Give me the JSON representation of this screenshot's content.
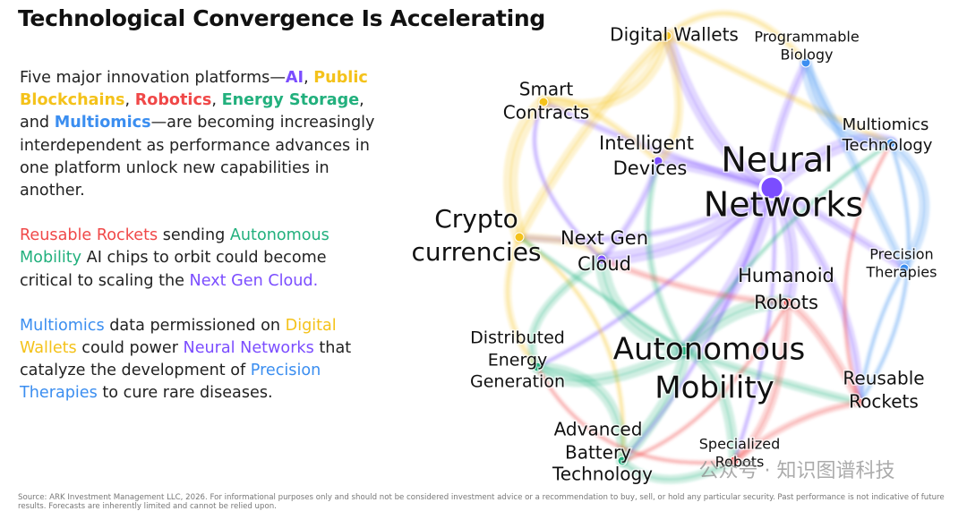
{
  "title": "Technological Convergence Is Accelerating",
  "paragraphs": [
    {
      "segments": [
        {
          "text": "Five major innovation platforms—"
        },
        {
          "text": "AI",
          "color": "#7b4dff",
          "bold": true
        },
        {
          "text": ", "
        },
        {
          "text": "Public Blockchains",
          "color": "#f4c21a",
          "bold": true
        },
        {
          "text": ", "
        },
        {
          "text": "Robotics",
          "color": "#f04848",
          "bold": true
        },
        {
          "text": ", "
        },
        {
          "text": "Energy Storage",
          "color": "#22b07d",
          "bold": true
        },
        {
          "text": ", and "
        },
        {
          "text": "Multiomics",
          "color": "#3b8ef0",
          "bold": true
        },
        {
          "text": "—are becoming increasingly interdependent as performance advances in one platform unlock new capabilities in another."
        }
      ]
    },
    {
      "segments": [
        {
          "text": "Reusable Rockets",
          "color": "#f04848"
        },
        {
          "text": " sending "
        },
        {
          "text": "Autonomous Mobility",
          "color": "#22b07d"
        },
        {
          "text": " AI chips to orbit could become critical to scaling the "
        },
        {
          "text": "Next Gen Cloud.",
          "color": "#7b4dff"
        }
      ]
    },
    {
      "segments": [
        {
          "text": "Multiomics",
          "color": "#3b8ef0"
        },
        {
          "text": " data permissioned on "
        },
        {
          "text": "Digital Wallets",
          "color": "#f4c21a"
        },
        {
          "text": " could power "
        },
        {
          "text": "Neural Networks",
          "color": "#7b4dff"
        },
        {
          "text": " that catalyze the development of "
        },
        {
          "text": "Precision Therapies",
          "color": "#3b8ef0"
        },
        {
          "text": " to cure rare diseases."
        }
      ]
    }
  ],
  "nodes": [
    {
      "lines": [
        "Digital Wallets"
      ],
      "color": "#f4c21a"
    },
    {
      "lines": [
        "Programmable",
        "Biology"
      ],
      "color": "#3b8ef0"
    },
    {
      "lines": [
        "Smart",
        "Contracts"
      ],
      "color": "#f4c21a"
    },
    {
      "lines": [
        "Multiomics",
        "Technology"
      ],
      "color": "#3b8ef0"
    },
    {
      "lines": [
        "Intelligent",
        "Devices"
      ],
      "color": "#7b4dff"
    },
    {
      "lines": [
        "Neural",
        "Networks"
      ],
      "color": "#7b4dff"
    },
    {
      "lines": [
        "Crypto",
        "currencies"
      ],
      "color": "#f4c21a"
    },
    {
      "lines": [
        "Next Gen",
        "Cloud"
      ],
      "color": "#7b4dff"
    },
    {
      "lines": [
        "Precision",
        "Therapies"
      ],
      "color": "#3b8ef0"
    },
    {
      "lines": [
        "Humanoid",
        "Robots"
      ],
      "color": "#f04848"
    },
    {
      "lines": [
        "Distributed",
        "Energy",
        "Generation"
      ],
      "color": "#22b07d"
    },
    {
      "lines": [
        "Autonomous",
        "Mobility"
      ],
      "color": "#22b07d"
    },
    {
      "lines": [
        "Reusable",
        "Rockets"
      ],
      "color": "#f04848"
    },
    {
      "lines": [
        "Advanced",
        "Battery",
        "Technology"
      ],
      "color": "#22b07d"
    },
    {
      "lines": [
        "Specialized",
        "Robots"
      ],
      "color": "#f04848"
    }
  ],
  "watermark": "公众号 · 知识图谱科技",
  "footnote": "Source: ARK Investment Management LLC, 2026. For informational purposes only and should not be considered investment advice or a recommendation to buy, sell, or hold any particular security. Past performance is not indicative of future results. Forecasts are inherently limited and cannot be relied upon."
}
